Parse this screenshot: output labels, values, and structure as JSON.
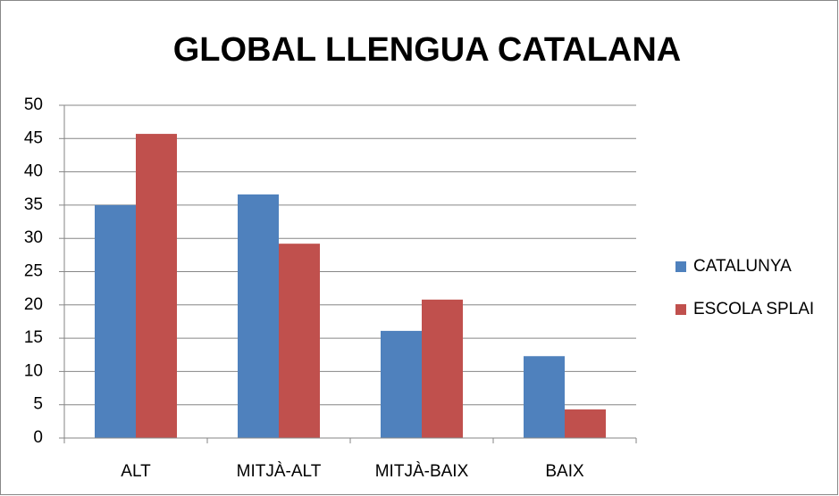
{
  "chart_data": {
    "type": "bar",
    "title": "GLOBAL LLENGUA CATALANA",
    "categories": [
      "ALT",
      "MITJÀ-ALT",
      "MITJÀ-BAIX",
      "BAIX"
    ],
    "series": [
      {
        "name": "CATALUNYA",
        "color": "#4f81bd",
        "values": [
          35.0,
          36.6,
          16.1,
          12.3
        ]
      },
      {
        "name": "ESCOLA SPLAI",
        "color": "#c0504d",
        "values": [
          45.7,
          29.2,
          20.8,
          4.3
        ]
      }
    ],
    "ylim": [
      0,
      50
    ],
    "yticks": [
      0,
      5,
      10,
      15,
      20,
      25,
      30,
      35,
      40,
      45,
      50
    ],
    "grid": true,
    "legend": "right"
  }
}
